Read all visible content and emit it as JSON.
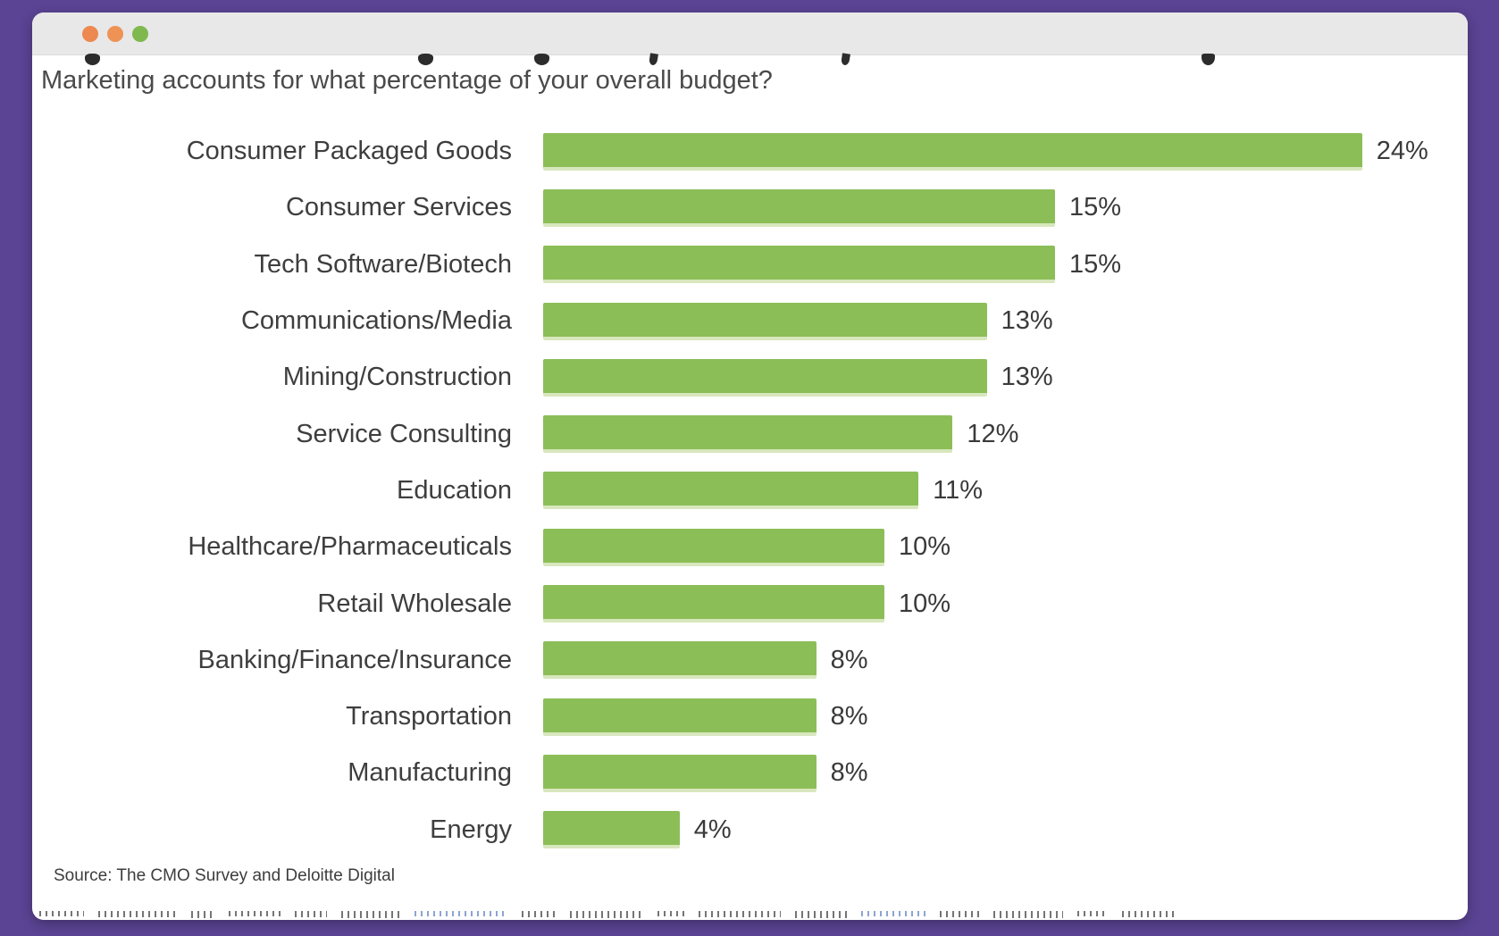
{
  "frame": {
    "border_color": "#5B4494"
  },
  "window": {
    "titlebar_background": "#E8E8E8",
    "buttons": [
      {
        "name": "window-button-1",
        "color": "#EC8850"
      },
      {
        "name": "window-button-2",
        "color": "#EE9355"
      },
      {
        "name": "window-button-3",
        "color": "#7FB84E"
      }
    ]
  },
  "chart_data": {
    "type": "bar",
    "orientation": "horizontal",
    "title": "Marketing accounts for what percentage of your overall budget?",
    "categories": [
      "Consumer Packaged Goods",
      "Consumer Services",
      "Tech Software/Biotech",
      "Communications/Media",
      "Mining/Construction",
      "Service Consulting",
      "Education",
      "Healthcare/Pharmaceuticals",
      "Retail Wholesale",
      "Banking/Finance/Insurance",
      "Transportation",
      "Manufacturing",
      "Energy"
    ],
    "values": [
      24,
      15,
      15,
      13,
      13,
      12,
      11,
      10,
      10,
      8,
      8,
      8,
      4
    ],
    "labels": [
      "24%",
      "15%",
      "15%",
      "13%",
      "13%",
      "12%",
      "11%",
      "10%",
      "10%",
      "8%",
      "8%",
      "8%",
      "4%"
    ],
    "bar_color": "#8CBE58",
    "xlim": [
      0,
      25
    ],
    "grid": false,
    "legend_position": "none",
    "value_labels_shown": true,
    "source": "Source: The CMO Survey and Deloitte Digital"
  }
}
